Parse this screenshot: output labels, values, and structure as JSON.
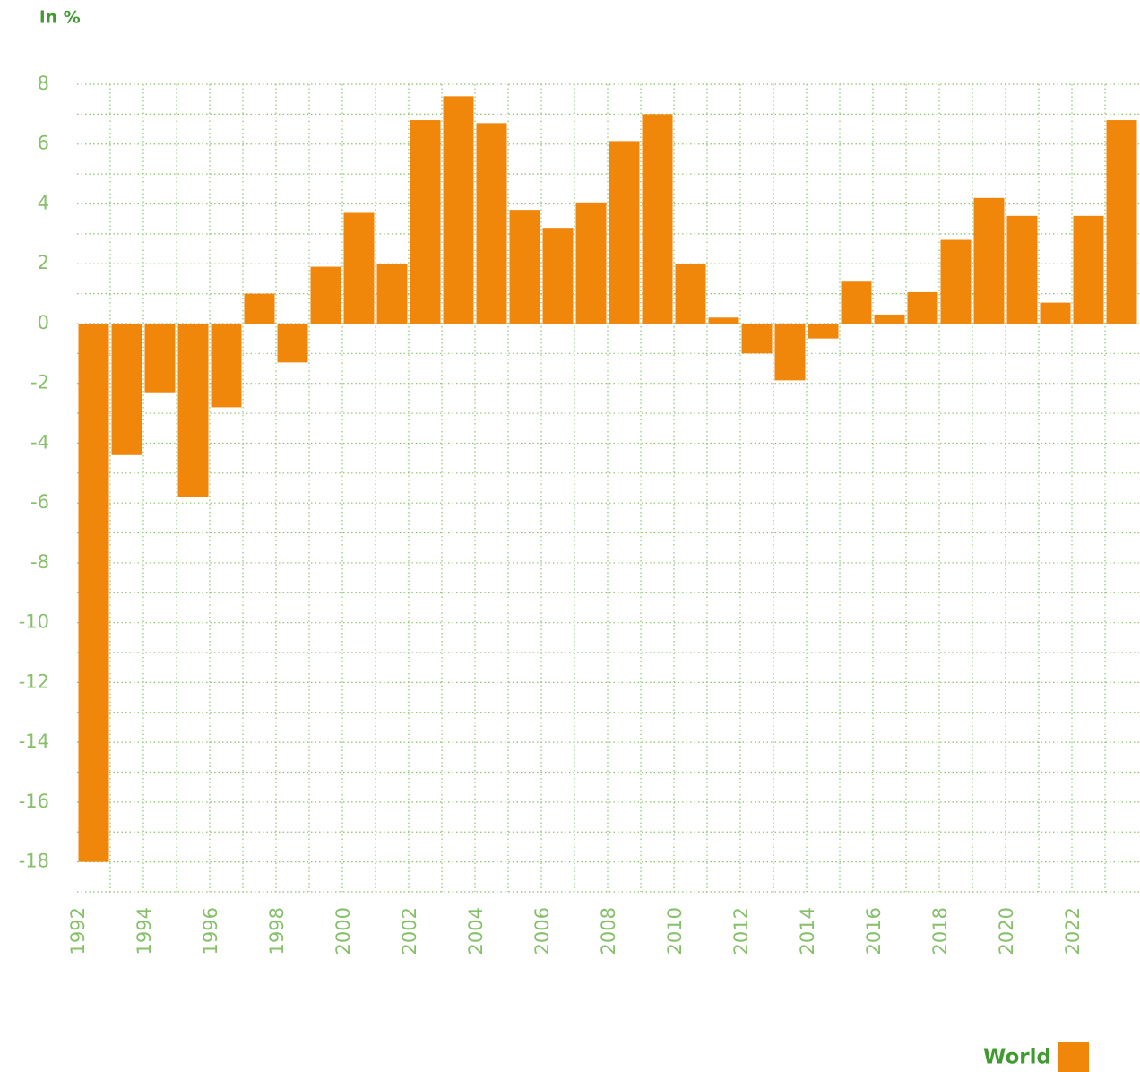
{
  "chart_data": {
    "type": "bar",
    "y_axis_label": "in %",
    "categories": [
      "1992",
      null,
      "1994",
      null,
      "1996",
      null,
      "1998",
      null,
      "2000",
      null,
      "2002",
      null,
      "2004",
      null,
      "2006",
      null,
      "2008",
      null,
      "2010",
      null,
      "2012",
      null,
      "2014",
      null,
      "2016",
      null,
      "2018",
      null,
      "2020",
      null,
      "2022",
      null
    ],
    "series": [
      {
        "name": "World",
        "color": "#f0860a",
        "values": [
          -18.0,
          -4.4,
          -2.3,
          -5.8,
          -2.8,
          1.0,
          -1.3,
          1.9,
          3.7,
          2.0,
          6.8,
          7.6,
          6.7,
          3.8,
          3.2,
          4.05,
          6.1,
          7.0,
          2.0,
          0.2,
          -1.0,
          -1.9,
          -0.5,
          1.4,
          0.3,
          1.05,
          2.8,
          4.2,
          3.6,
          0.7,
          3.6,
          6.8
        ]
      }
    ],
    "ylim": [
      -19,
      8
    ],
    "yticks": [
      -18,
      -16,
      -14,
      -12,
      -10,
      -8,
      -6,
      -4,
      -2,
      0,
      2,
      4,
      6,
      8
    ],
    "yticks_minor": [
      -19,
      -17,
      -15,
      -13,
      -11,
      -9,
      -7,
      -5,
      -3,
      -1,
      1,
      3,
      5,
      7
    ],
    "grid": true,
    "legend": "bottom-right"
  }
}
